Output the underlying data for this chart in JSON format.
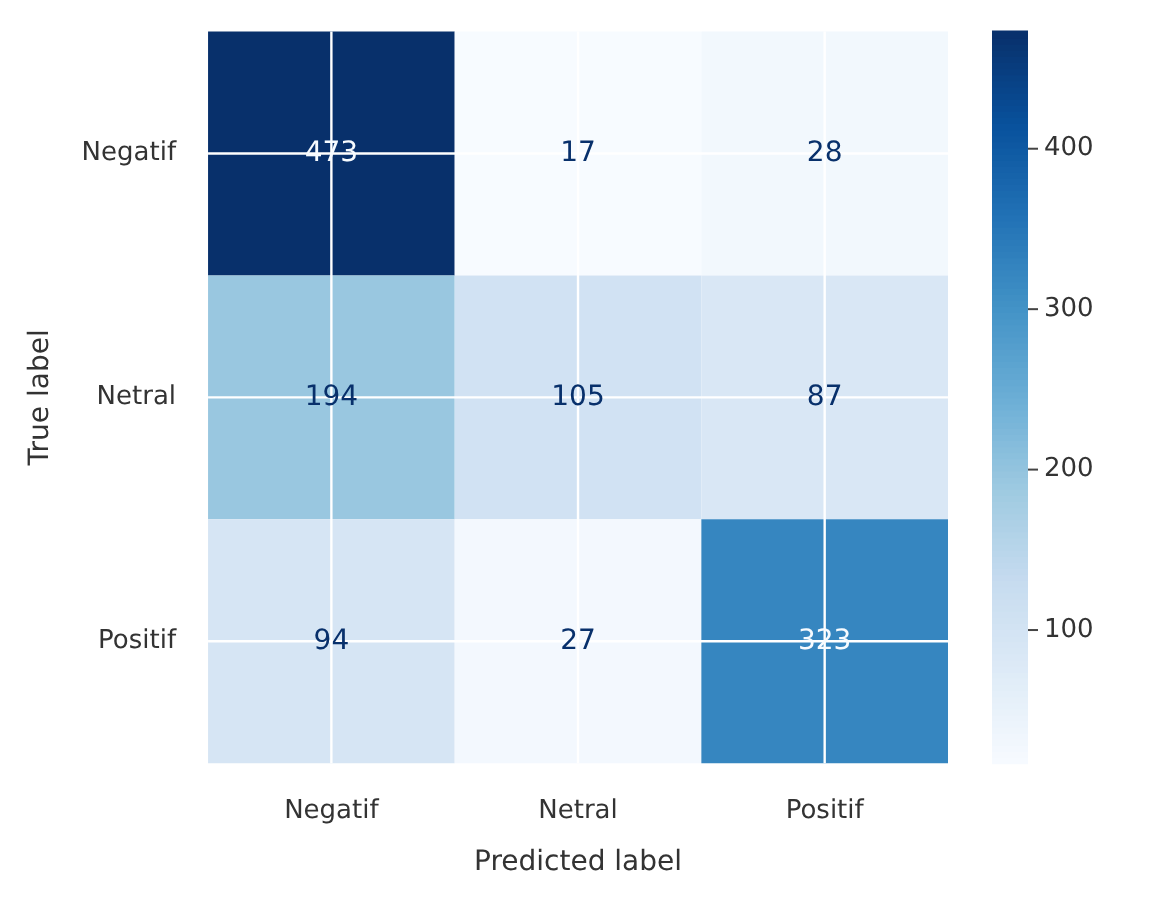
{
  "chart_data": {
    "type": "heatmap",
    "xlabel": "Predicted label",
    "ylabel": "True label",
    "categories": [
      "Negatif",
      "Netral",
      "Positif"
    ],
    "y_categories": [
      "Negatif",
      "Netral",
      "Positif"
    ],
    "cells": [
      [
        473,
        17,
        28
      ],
      [
        194,
        105,
        87
      ],
      [
        94,
        27,
        323
      ]
    ],
    "clim": [
      17,
      473
    ],
    "cticks": [
      100,
      200,
      300,
      400
    ],
    "grid": true,
    "data_labels": true
  }
}
